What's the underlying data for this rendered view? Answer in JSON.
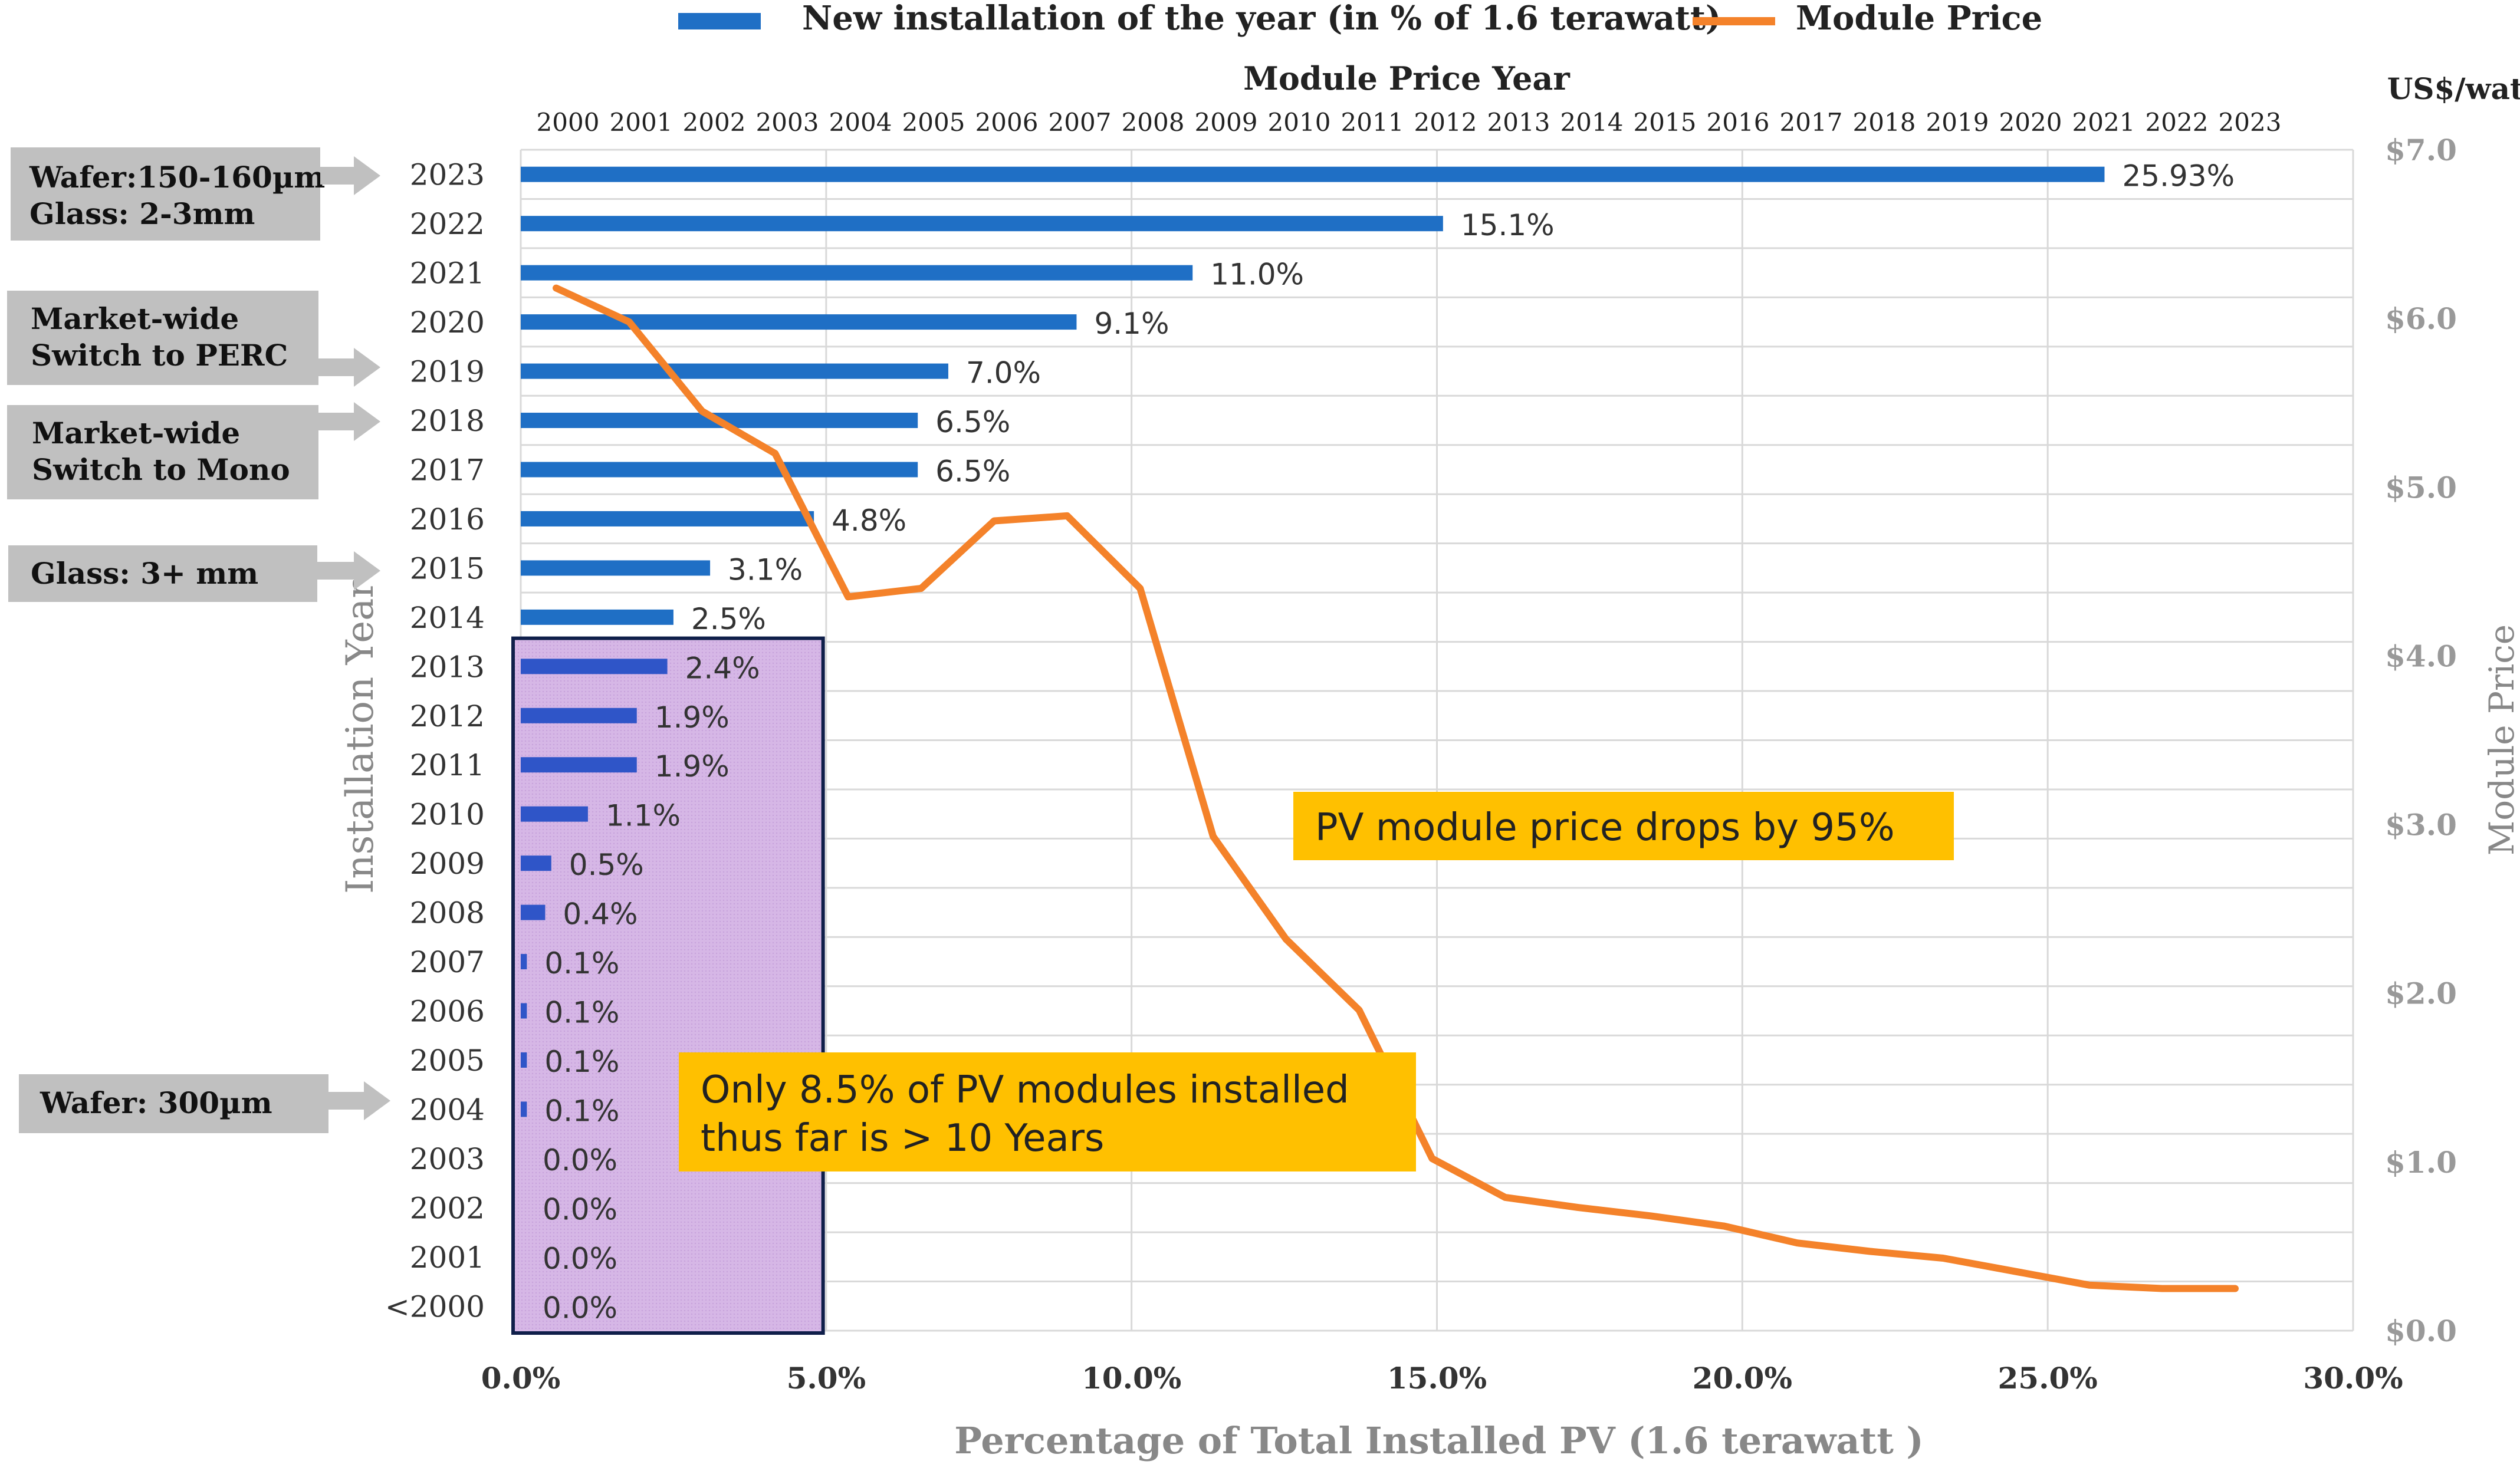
{
  "legend": {
    "bar_label": "New installation of the year (in % of 1.6 terawatt)",
    "line_label": "Module Price"
  },
  "chart_data": {
    "type": "bar",
    "orientation": "horizontal",
    "categories": [
      "2023",
      "2022",
      "2021",
      "2020",
      "2019",
      "2018",
      "2017",
      "2016",
      "2015",
      "2014",
      "2013",
      "2012",
      "2011",
      "2010",
      "2009",
      "2008",
      "2007",
      "2006",
      "2005",
      "2004",
      "2003",
      "2002",
      "2001",
      "<2000"
    ],
    "values": [
      25.93,
      15.1,
      11.0,
      9.1,
      7.0,
      6.5,
      6.5,
      4.8,
      3.1,
      2.5,
      2.4,
      1.9,
      1.9,
      1.1,
      0.5,
      0.4,
      0.1,
      0.1,
      0.1,
      0.1,
      0.0,
      0.0,
      0.0,
      0.0
    ],
    "value_labels": [
      "25.93%",
      "15.1%",
      "11.0%",
      "9.1%",
      "7.0%",
      "6.5%",
      "6.5%",
      "4.8%",
      "3.1%",
      "2.5%",
      "2.4%",
      "1.9%",
      "1.9%",
      "1.1%",
      "0.5%",
      "0.4%",
      "0.1%",
      "0.1%",
      "0.1%",
      "0.1%",
      "0.0%",
      "0.0%",
      "0.0%",
      "0.0%"
    ],
    "xlabel": "Percentage of Total Installed PV (1.6 terawatt )",
    "ylabel": "Installation Year",
    "xlim": [
      0,
      30
    ],
    "xticks": [
      0,
      5,
      10,
      15,
      20,
      25,
      30
    ],
    "xtick_labels": [
      "0.0%",
      "5.0%",
      "10.0%",
      "15.0%",
      "20.0%",
      "25.0%",
      "30.0%"
    ],
    "price_series": {
      "name": "Module Price",
      "top_axis_title": "Module Price Year",
      "top_axis_labels": [
        "2000",
        "2001",
        "2002",
        "2003",
        "2004",
        "2005",
        "2006",
        "2007",
        "2008",
        "2009",
        "2010",
        "2011",
        "2012",
        "2013",
        "2014",
        "2015",
        "2016",
        "2017",
        "2018",
        "2019",
        "2020",
        "2021",
        "2022",
        "2023"
      ],
      "right_axis_title": "Module Price",
      "right_axis_unit": "US$/watt",
      "ylim": [
        0,
        7
      ],
      "yticks": [
        0,
        1,
        2,
        3,
        4,
        5,
        6,
        7
      ],
      "ytick_labels": [
        "$0.0",
        "$1.0",
        "$2.0",
        "$3.0",
        "$4.0",
        "$5.0",
        "$6.0",
        "$7.0"
      ],
      "years": [
        2000,
        2001,
        2002,
        2003,
        2004,
        2005,
        2006,
        2007,
        2008,
        2009,
        2010,
        2011,
        2012,
        2013,
        2014,
        2015,
        2016,
        2017,
        2018,
        2019,
        2020,
        2021,
        2022,
        2023
      ],
      "values": [
        6.18,
        5.98,
        5.45,
        5.2,
        4.35,
        4.4,
        4.8,
        4.83,
        4.4,
        2.93,
        2.32,
        1.9,
        1.02,
        0.79,
        0.73,
        0.68,
        0.62,
        0.52,
        0.47,
        0.43,
        0.35,
        0.27,
        0.25,
        0.25
      ]
    },
    "colors": {
      "bar": "#1f6fc5",
      "bar_highlight": "#2f55c8",
      "line": "#f4822a",
      "callout": "#ffc000"
    }
  },
  "annotations": {
    "price_drop": "PV module price drops by 95%",
    "old_modules_line1": "Only 8.5% of PV modules installed",
    "old_modules_line2": "thus far is > 10 Years"
  },
  "side_notes": [
    {
      "lines": [
        "Wafer:150-160µm",
        "Glass: 2-3mm"
      ]
    },
    {
      "lines": [
        "Market-wide",
        "Switch to PERC"
      ]
    },
    {
      "lines": [
        "Market-wide",
        "Switch to Mono"
      ]
    },
    {
      "lines": [
        "Glass: 3+ mm"
      ]
    },
    {
      "lines": [
        "Wafer: 300µm"
      ]
    }
  ]
}
